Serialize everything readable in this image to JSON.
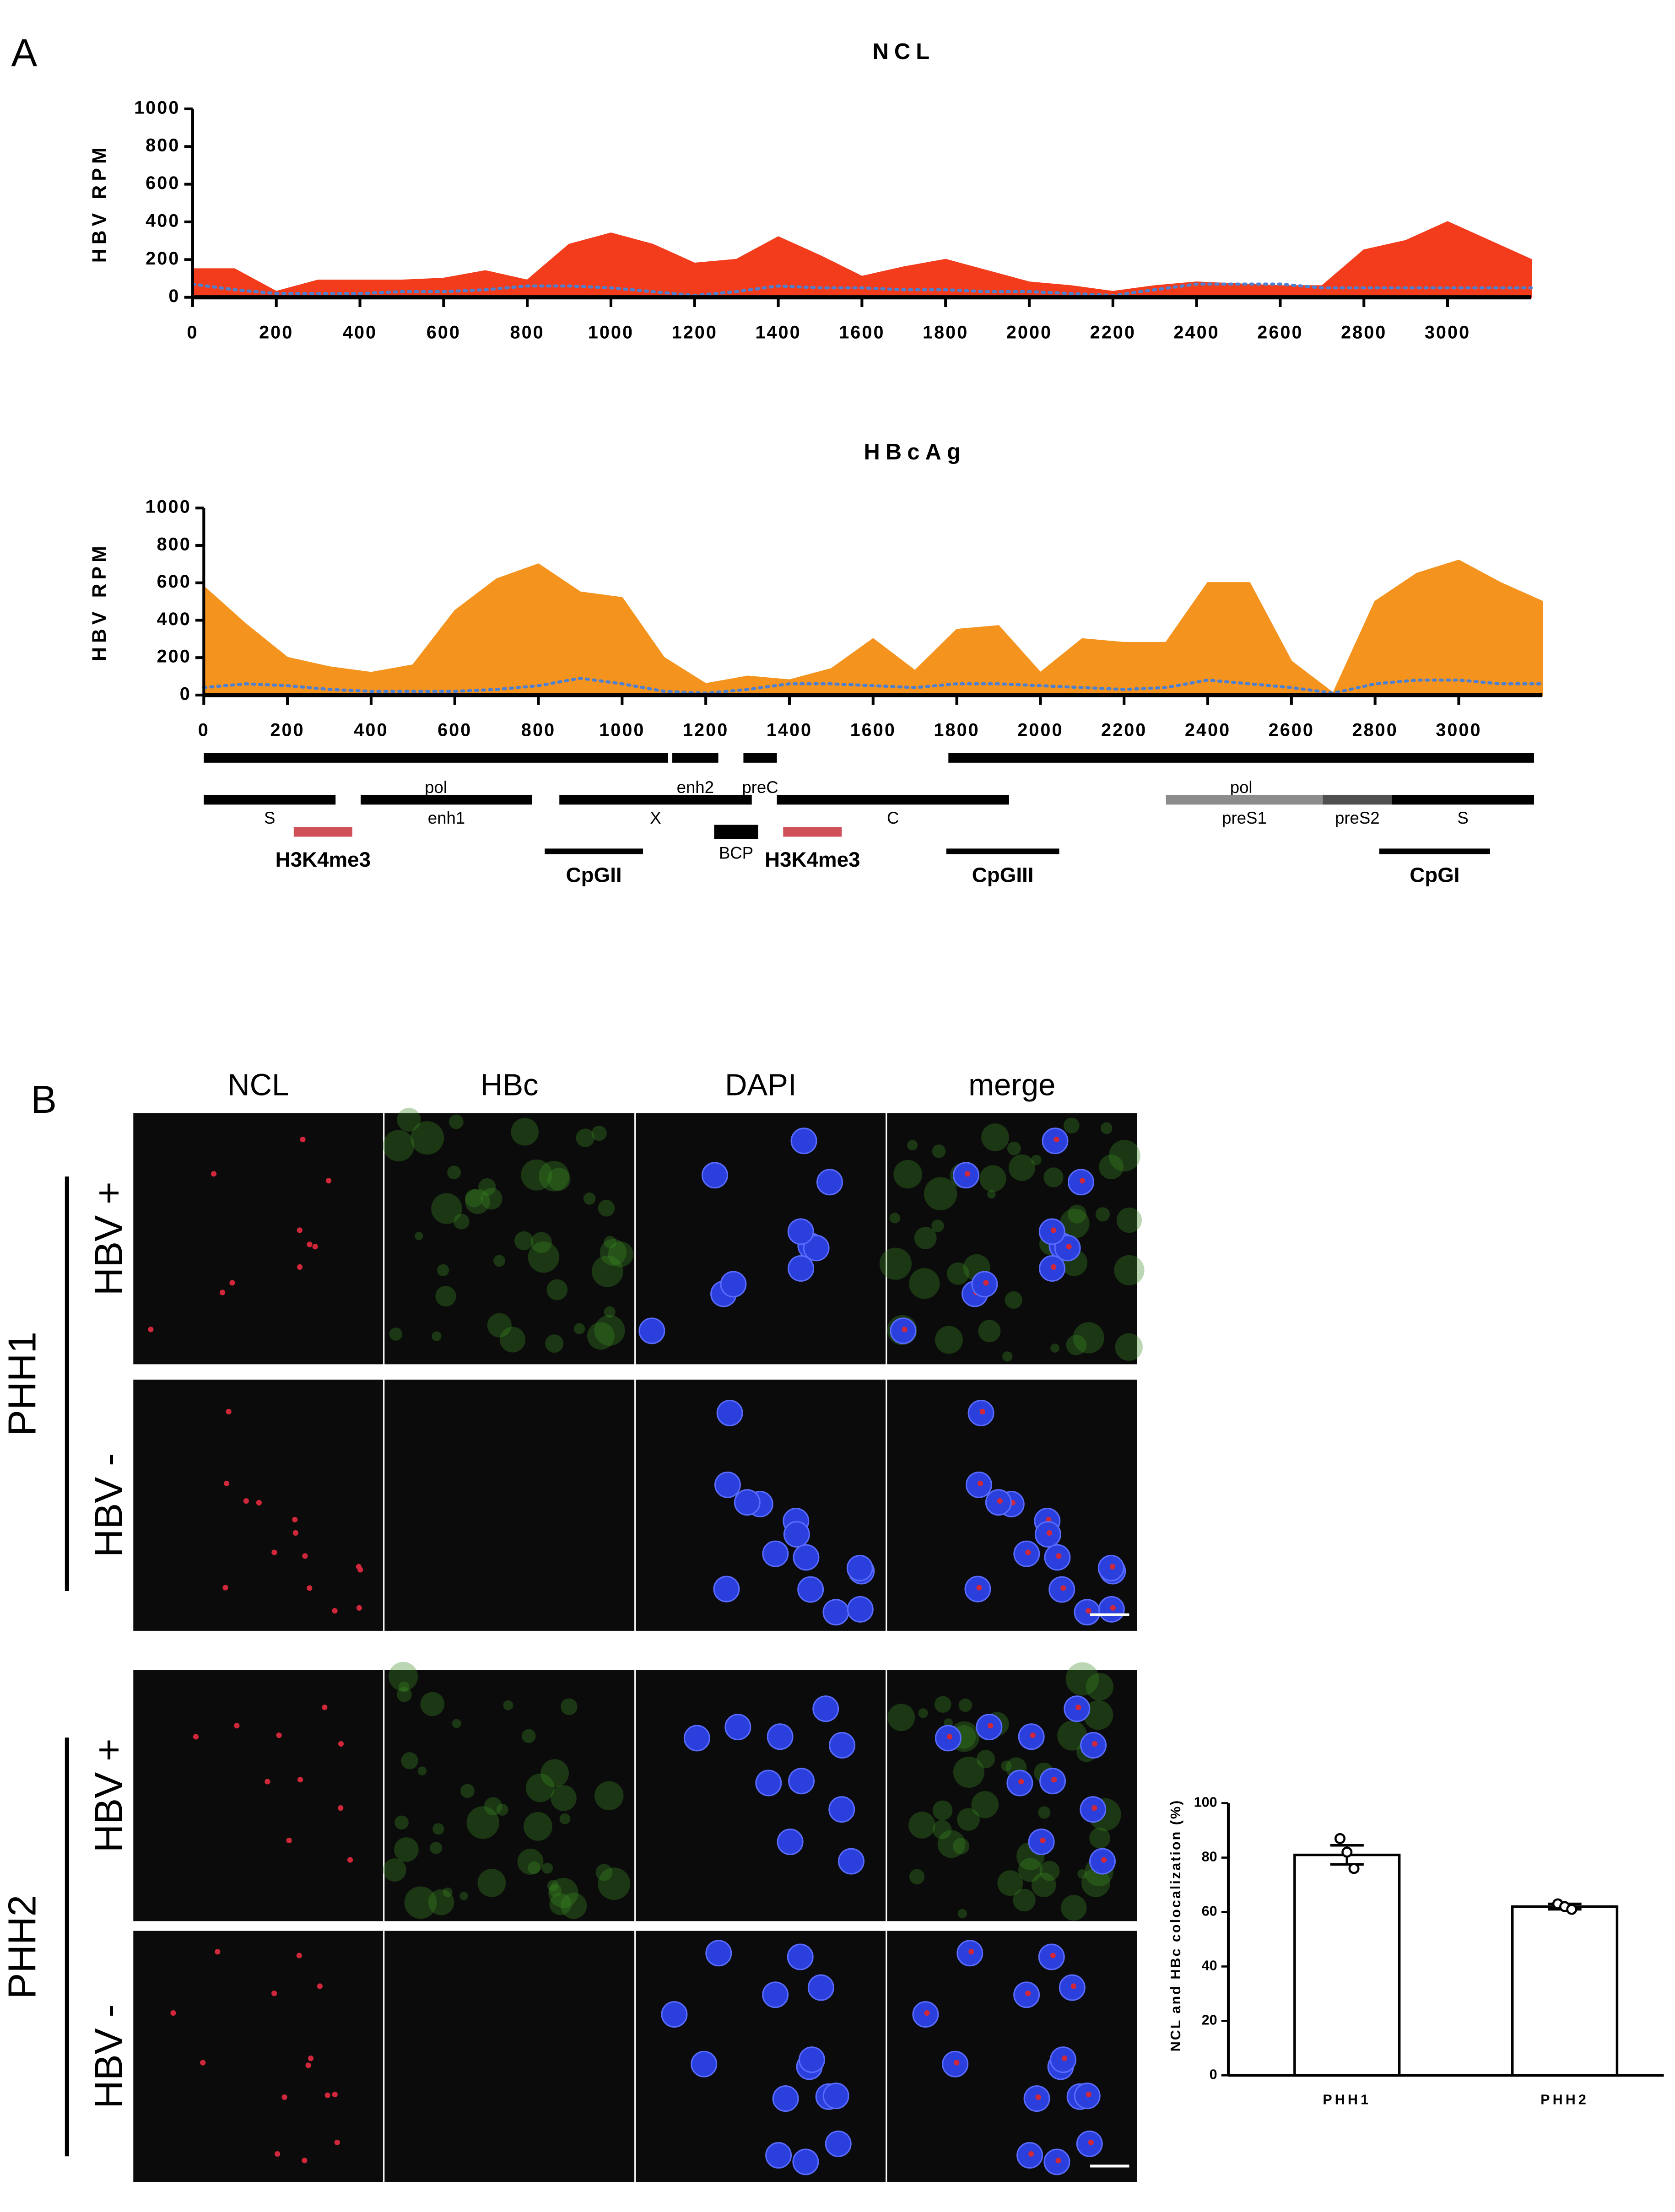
{
  "panel_labels": [
    "A",
    "B"
  ],
  "chart_data": [
    {
      "type": "area",
      "title": "NCL",
      "y_label": "HBV RPM",
      "x": [
        0,
        100,
        200,
        300,
        400,
        500,
        600,
        700,
        800,
        900,
        1000,
        1100,
        1200,
        1300,
        1400,
        1500,
        1600,
        1700,
        1800,
        1900,
        2000,
        2100,
        2200,
        2300,
        2400,
        2500,
        2600,
        2700,
        2800,
        2900,
        3000,
        3100,
        3200
      ],
      "series": [
        {
          "color": "#f23c1c",
          "style": "fill",
          "values": [
            150,
            150,
            30,
            90,
            90,
            90,
            100,
            140,
            90,
            280,
            340,
            280,
            180,
            200,
            320,
            220,
            110,
            160,
            200,
            140,
            80,
            60,
            30,
            60,
            80,
            70,
            60,
            60,
            250,
            300,
            400,
            300,
            200
          ]
        },
        {
          "color": "#4f7fcf",
          "style": "dotted",
          "values": [
            70,
            40,
            20,
            20,
            20,
            30,
            30,
            40,
            60,
            60,
            50,
            30,
            10,
            30,
            60,
            50,
            50,
            40,
            40,
            30,
            30,
            20,
            10,
            40,
            70,
            70,
            70,
            50,
            50,
            50,
            50,
            50,
            50
          ]
        }
      ],
      "xlim": [
        0,
        3200
      ],
      "ylim": [
        0,
        1000
      ],
      "xticks": [
        0,
        200,
        400,
        600,
        800,
        1000,
        1200,
        1400,
        1600,
        1800,
        2000,
        2200,
        2400,
        2600,
        2800,
        3000
      ],
      "yticks": [
        0,
        200,
        400,
        600,
        800,
        1000
      ]
    },
    {
      "type": "area",
      "title": "HBcAg",
      "y_label": "HBV RPM",
      "x": [
        0,
        100,
        200,
        300,
        400,
        500,
        600,
        700,
        800,
        900,
        1000,
        1100,
        1200,
        1300,
        1400,
        1500,
        1600,
        1700,
        1800,
        1900,
        2000,
        2100,
        2200,
        2300,
        2400,
        2500,
        2600,
        2700,
        2800,
        2900,
        3000,
        3100,
        3200
      ],
      "series": [
        {
          "color": "#f4941f",
          "style": "fill",
          "values": [
            580,
            380,
            200,
            150,
            120,
            160,
            450,
            620,
            700,
            550,
            520,
            200,
            60,
            100,
            80,
            140,
            300,
            130,
            350,
            370,
            120,
            300,
            280,
            280,
            600,
            600,
            180,
            10,
            500,
            650,
            720,
            600,
            500
          ]
        },
        {
          "color": "#4f7fcf",
          "style": "dotted",
          "values": [
            40,
            60,
            50,
            30,
            20,
            20,
            20,
            30,
            50,
            90,
            60,
            20,
            10,
            30,
            60,
            60,
            50,
            40,
            60,
            60,
            50,
            40,
            30,
            40,
            80,
            60,
            40,
            10,
            60,
            80,
            80,
            60,
            60
          ]
        }
      ],
      "xlim": [
        0,
        3200
      ],
      "ylim": [
        0,
        1000
      ],
      "xticks": [
        0,
        200,
        400,
        600,
        800,
        1000,
        1200,
        1400,
        1600,
        1800,
        2000,
        2200,
        2400,
        2600,
        2800,
        3000
      ],
      "yticks": [
        0,
        200,
        400,
        600,
        800,
        1000
      ]
    },
    {
      "type": "bar",
      "y_label": "NCL and HBc colocalization (%)",
      "categories": [
        "PHH1",
        "PHH2"
      ],
      "values": [
        81,
        62
      ],
      "errors": [
        3.5,
        1
      ],
      "points": [
        [
          87,
          82,
          76
        ],
        [
          63,
          62,
          61
        ]
      ],
      "color": "#ffffff",
      "ylim": [
        0,
        100
      ],
      "yticks": [
        0,
        20,
        40,
        60,
        80,
        100
      ]
    }
  ],
  "genome_map": {
    "track1": [
      {
        "label": "pol",
        "start": 0,
        "end": 1110,
        "color": "#000000"
      },
      {
        "label": "enh2",
        "start": 1120,
        "end": 1230,
        "color": "#000000"
      },
      {
        "label": "preC",
        "start": 1290,
        "end": 1370,
        "color": "#000000"
      },
      {
        "label": "pol",
        "start": 1780,
        "end": 3180,
        "color": "#000000"
      }
    ],
    "track2": [
      {
        "label": "S",
        "start": 0,
        "end": 315,
        "color": "#000000"
      },
      {
        "label": "enh1",
        "start": 375,
        "end": 785,
        "color": "#000000"
      },
      {
        "label": "X",
        "start": 850,
        "end": 1310,
        "color": "#000000"
      },
      {
        "label": "C",
        "start": 1370,
        "end": 1925,
        "color": "#000000"
      },
      {
        "label": "preS1",
        "start": 2300,
        "end": 2675,
        "color": "#8c8c8c"
      },
      {
        "label": "preS2",
        "start": 2675,
        "end": 2840,
        "color": "#505050"
      },
      {
        "label": "S",
        "start": 2840,
        "end": 3180,
        "color": "#000000"
      }
    ],
    "marks": [
      {
        "label": "H3K4me3",
        "start": 215,
        "end": 355,
        "color": "#d0505a"
      },
      {
        "label": "CpGII",
        "start": 815,
        "end": 1050,
        "color": "#000000"
      },
      {
        "label": "BCP",
        "start": 1220,
        "end": 1325,
        "color": "#000000"
      },
      {
        "label": "H3K4me3",
        "start": 1385,
        "end": 1525,
        "color": "#d0505a"
      },
      {
        "label": "CpGIII",
        "start": 1775,
        "end": 2045,
        "color": "#000000"
      },
      {
        "label": "CpGI",
        "start": 2810,
        "end": 3075,
        "color": "#000000"
      }
    ]
  },
  "panel_b": {
    "columns": [
      "NCL",
      "HBc",
      "DAPI",
      "merge"
    ],
    "rows": [
      "HBV +",
      "HBV -",
      "HBV +",
      "HBV -"
    ],
    "groups": [
      "PHH1",
      "PHH2"
    ]
  }
}
